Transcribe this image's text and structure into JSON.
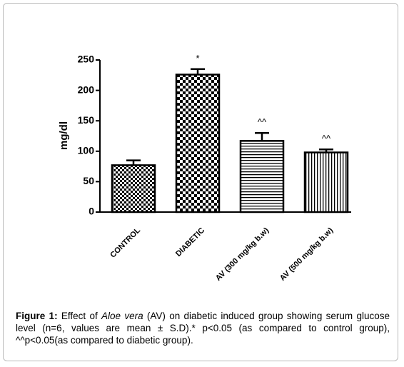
{
  "chart_data": {
    "type": "bar",
    "categories": [
      "CONTROL",
      "DIABETIC",
      "AV (300 mg/kg b.w)",
      "AV (500 mg/kg b.w)"
    ],
    "values": [
      77,
      226,
      117,
      98
    ],
    "errors": [
      8,
      9,
      13,
      5
    ],
    "bar_labels": [
      null,
      "*",
      "^^",
      "^^"
    ],
    "patterns": [
      "checker-fine",
      "checker",
      "horizontal-lines",
      "vertical-lines"
    ],
    "color": "#000000",
    "ylabel": "mg/dl",
    "ylim": [
      0,
      250
    ],
    "yticks": [
      0,
      50,
      100,
      150,
      200,
      250
    ]
  },
  "caption": {
    "label": "Figure 1:",
    "before": " Effect of ",
    "italic": "Aloe vera",
    "after": " (AV) on diabetic induced group showing serum glucose level   (n=6, values are mean ± S.D).* p<0.05 (as compared to control group), ^^p<0.05(as compared to diabetic group)."
  }
}
